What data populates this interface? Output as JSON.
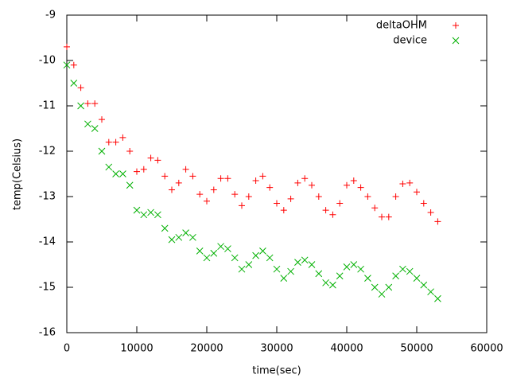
{
  "chart_data": {
    "type": "scatter",
    "xlabel": "time(sec)",
    "ylabel": "temp(Celsius)",
    "xlim": [
      0,
      60000
    ],
    "xticks": [
      0,
      10000,
      20000,
      30000,
      40000,
      50000,
      60000
    ],
    "ylim": [
      -16,
      -9
    ],
    "yticks": [
      -16,
      -15,
      -14,
      -13,
      -12,
      -11,
      -10,
      -9
    ],
    "legend": "top-right",
    "x": [
      0,
      1000,
      2000,
      3000,
      4000,
      5000,
      6000,
      7000,
      8000,
      9000,
      10000,
      11000,
      12000,
      13000,
      14000,
      15000,
      16000,
      17000,
      18000,
      19000,
      20000,
      21000,
      22000,
      23000,
      24000,
      25000,
      26000,
      27000,
      28000,
      29000,
      30000,
      31000,
      32000,
      33000,
      34000,
      35000,
      36000,
      37000,
      38000,
      39000,
      40000,
      41000,
      42000,
      43000,
      44000,
      45000,
      46000,
      47000,
      48000,
      49000,
      50000,
      51000,
      52000,
      53000
    ],
    "series": [
      {
        "name": "deltaOHM",
        "color": "#ff0000",
        "marker": "plus",
        "values": [
          -9.7,
          -10.1,
          -10.6,
          -10.95,
          -10.95,
          -11.3,
          -11.8,
          -11.8,
          -11.7,
          -12.0,
          -12.45,
          -12.4,
          -12.15,
          -12.2,
          -12.55,
          -12.85,
          -12.7,
          -12.4,
          -12.55,
          -12.95,
          -13.1,
          -12.85,
          -12.6,
          -12.6,
          -12.95,
          -13.2,
          -13.0,
          -12.65,
          -12.55,
          -12.8,
          -13.15,
          -13.3,
          -13.05,
          -12.7,
          -12.6,
          -12.75,
          -13.0,
          -13.3,
          -13.4,
          -13.15,
          -12.75,
          -12.65,
          -12.8,
          -13.0,
          -13.25,
          -13.45,
          -13.45,
          -13.0,
          -12.72,
          -12.7,
          -12.9,
          -13.15,
          -13.35,
          -13.55
        ]
      },
      {
        "name": "device",
        "color": "#00b000",
        "marker": "cross",
        "values": [
          -10.1,
          -10.5,
          -11.0,
          -11.4,
          -11.5,
          -12.0,
          -12.35,
          -12.5,
          -12.5,
          -12.75,
          -13.3,
          -13.4,
          -13.35,
          -13.4,
          -13.7,
          -13.95,
          -13.9,
          -13.8,
          -13.9,
          -14.2,
          -14.35,
          -14.25,
          -14.1,
          -14.15,
          -14.35,
          -14.6,
          -14.5,
          -14.3,
          -14.2,
          -14.35,
          -14.6,
          -14.8,
          -14.65,
          -14.45,
          -14.4,
          -14.5,
          -14.7,
          -14.9,
          -14.95,
          -14.75,
          -14.55,
          -14.5,
          -14.6,
          -14.8,
          -15.0,
          -15.15,
          -15.0,
          -14.75,
          -14.6,
          -14.65,
          -14.8,
          -14.95,
          -15.1,
          -15.25
        ]
      }
    ]
  }
}
